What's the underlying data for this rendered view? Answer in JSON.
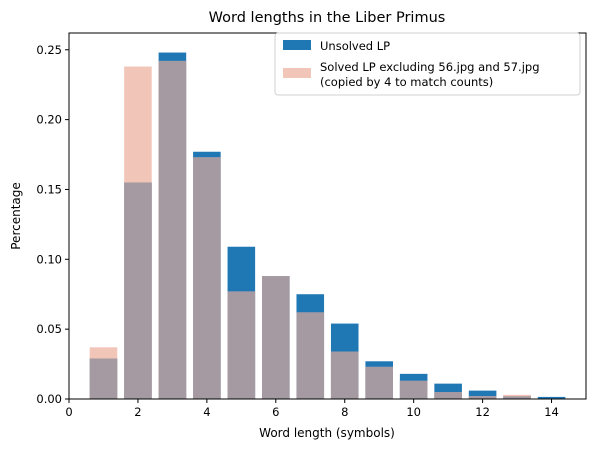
{
  "chart_data": {
    "type": "bar",
    "title": "Word lengths in the Liber Primus",
    "xlabel": "Word length (symbols)",
    "ylabel": "Percentage",
    "xlim": [
      0,
      15
    ],
    "ylim": [
      0,
      0.262
    ],
    "xticks": [
      0,
      2,
      4,
      6,
      8,
      10,
      12,
      14
    ],
    "yticks": [
      0.0,
      0.05,
      0.1,
      0.15,
      0.2,
      0.25
    ],
    "xtick_labels": [
      "0",
      "2",
      "4",
      "6",
      "8",
      "10",
      "12",
      "14"
    ],
    "ytick_labels": [
      "0.00",
      "0.05",
      "0.10",
      "0.15",
      "0.20",
      "0.25"
    ],
    "grid": false,
    "legend_position": "top-right",
    "overlap_color": "#a59aa2",
    "series": [
      {
        "name": "Unsolved LP",
        "color": "#1f77b4",
        "x": [
          1,
          2,
          3,
          4,
          5,
          6,
          7,
          8,
          9,
          10,
          11,
          12,
          13,
          14
        ],
        "values": [
          0.029,
          0.155,
          0.248,
          0.177,
          0.109,
          0.088,
          0.075,
          0.054,
          0.027,
          0.018,
          0.011,
          0.006,
          0.002,
          0.0015
        ]
      },
      {
        "name": "Solved LP excluding 56.jpg and 57.jpg\n(copied by 4 to match counts)",
        "color": "#f2c5b9",
        "x": [
          1,
          2,
          3,
          4,
          5,
          6,
          7,
          8,
          9,
          10,
          11,
          12,
          13,
          14
        ],
        "values": [
          0.037,
          0.238,
          0.242,
          0.173,
          0.077,
          0.088,
          0.062,
          0.034,
          0.023,
          0.013,
          0.005,
          0.002,
          0.003,
          0.0
        ]
      }
    ]
  }
}
